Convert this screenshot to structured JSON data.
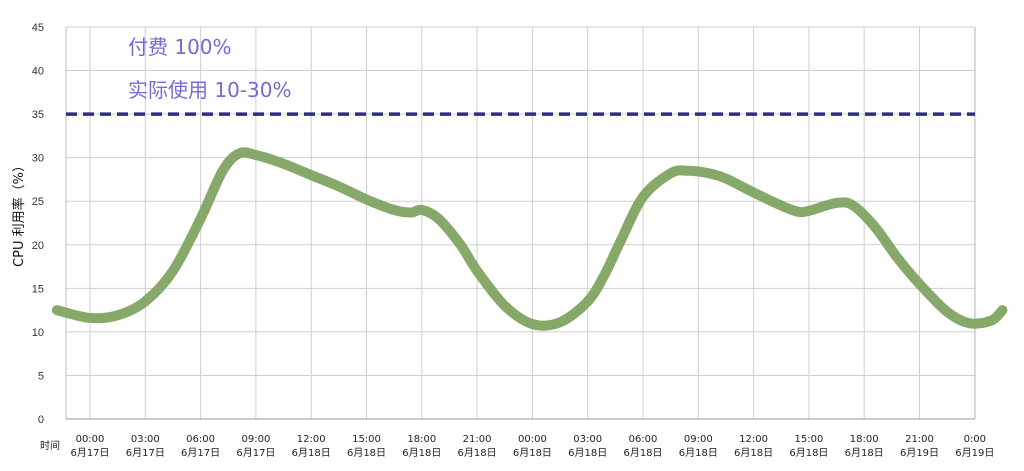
{
  "chart_data": {
    "type": "line",
    "ylabel": "CPU 利用率（%）",
    "xlabel": "时间",
    "ylim": [
      0,
      45
    ],
    "yticks": [
      0,
      5,
      10,
      15,
      20,
      25,
      30,
      35,
      40,
      45
    ],
    "grid": true,
    "x_ticks": [
      {
        "time": "00:00",
        "date": "6月17日"
      },
      {
        "time": "03:00",
        "date": "6月17日"
      },
      {
        "time": "06:00",
        "date": "6月17日"
      },
      {
        "time": "09:00",
        "date": "6月17日"
      },
      {
        "time": "12:00",
        "date": "6月18日"
      },
      {
        "time": "15:00",
        "date": "6月18日"
      },
      {
        "time": "18:00",
        "date": "6月18日"
      },
      {
        "time": "21:00",
        "date": "6月18日"
      },
      {
        "time": "00:00",
        "date": "6月18日"
      },
      {
        "time": "03:00",
        "date": "6月18日"
      },
      {
        "time": "06:00",
        "date": "6月18日"
      },
      {
        "time": "09:00",
        "date": "6月18日"
      },
      {
        "time": "12:00",
        "date": "6月18日"
      },
      {
        "time": "15:00",
        "date": "6月18日"
      },
      {
        "time": "18:00",
        "date": "6月18日"
      },
      {
        "time": "21:00",
        "date": "6月19日"
      },
      {
        "time": "0:00",
        "date": "6月19日"
      }
    ],
    "series": [
      {
        "color": "#86a96a",
        "points": [
          [
            -0.6,
            12.5
          ],
          [
            0,
            11.6
          ],
          [
            0.5,
            11.9
          ],
          [
            1,
            13.5
          ],
          [
            1.5,
            17
          ],
          [
            2,
            23
          ],
          [
            2.4,
            28.5
          ],
          [
            2.7,
            30.5
          ],
          [
            3,
            30.3
          ],
          [
            3.5,
            29.3
          ],
          [
            4,
            28
          ],
          [
            4.5,
            26.7
          ],
          [
            5,
            25.2
          ],
          [
            5.5,
            24
          ],
          [
            5.8,
            23.7
          ],
          [
            6,
            24
          ],
          [
            6.3,
            23
          ],
          [
            6.7,
            20
          ],
          [
            7,
            17
          ],
          [
            7.5,
            13
          ],
          [
            8,
            10.9
          ],
          [
            8.5,
            11.1
          ],
          [
            9,
            13.5
          ],
          [
            9.3,
            16.5
          ],
          [
            9.6,
            20.5
          ],
          [
            10,
            25.5
          ],
          [
            10.5,
            28.2
          ],
          [
            10.8,
            28.5
          ],
          [
            11.2,
            28.2
          ],
          [
            11.5,
            27.6
          ],
          [
            12,
            26
          ],
          [
            12.5,
            24.5
          ],
          [
            12.8,
            23.8
          ],
          [
            13,
            23.9
          ],
          [
            13.5,
            24.8
          ],
          [
            13.8,
            24.5
          ],
          [
            14.2,
            22
          ],
          [
            14.6,
            18.5
          ],
          [
            15,
            15.5
          ],
          [
            15.5,
            12.3
          ],
          [
            15.9,
            11
          ],
          [
            16.3,
            11.3
          ],
          [
            16.5,
            12.5
          ]
        ]
      }
    ],
    "reference_line": {
      "value": 35,
      "style": "dashed",
      "color": "#2e2e86"
    },
    "annotations": [
      "付费 100%",
      "实际使用 10-30%"
    ],
    "annotation_color": "#7a68d8"
  }
}
